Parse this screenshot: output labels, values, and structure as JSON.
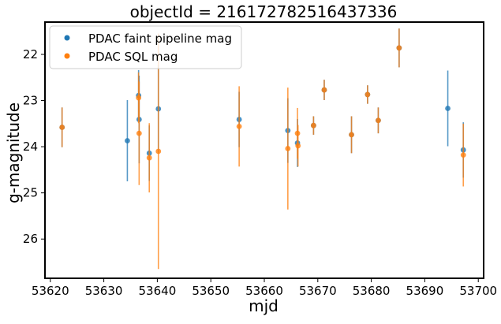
{
  "chart_data": {
    "type": "scatter",
    "title": "objectId = 216172782516437336",
    "xlabel": "mjd",
    "ylabel": "g-magnitude",
    "xlim": [
      53619,
      53701
    ],
    "ylim": [
      26.85,
      21.3
    ],
    "y_inverted": true,
    "x_ticks": [
      53620,
      53630,
      53640,
      53650,
      53660,
      53670,
      53680,
      53690,
      53700
    ],
    "y_ticks": [
      22,
      23,
      24,
      25,
      26
    ],
    "grid": false,
    "legend_position": "top-left",
    "series": [
      {
        "name": "PDAC faint pipeline mag",
        "color": "#1f77b4",
        "points": [
          {
            "x": 53622.2,
            "y": 23.58,
            "err": 0.43
          },
          {
            "x": 53634.4,
            "y": 23.87,
            "err": 0.88
          },
          {
            "x": 53636.5,
            "y": 22.89,
            "err": 0.55
          },
          {
            "x": 53636.6,
            "y": 23.41,
            "err": 0.95
          },
          {
            "x": 53638.5,
            "y": 24.14,
            "err": 0.6
          },
          {
            "x": 53640.2,
            "y": 23.18,
            "err": 0.95
          },
          {
            "x": 53655.3,
            "y": 23.41,
            "err": 0.6
          },
          {
            "x": 53664.4,
            "y": 23.65,
            "err": 0.7
          },
          {
            "x": 53666.2,
            "y": 23.92,
            "err": 0.52
          },
          {
            "x": 53669.2,
            "y": 23.54,
            "err": 0.2
          },
          {
            "x": 53671.2,
            "y": 22.77,
            "err": 0.22
          },
          {
            "x": 53676.3,
            "y": 23.74,
            "err": 0.4
          },
          {
            "x": 53679.3,
            "y": 22.87,
            "err": 0.2
          },
          {
            "x": 53681.3,
            "y": 23.43,
            "err": 0.28
          },
          {
            "x": 53685.2,
            "y": 21.86,
            "err": 0.42
          },
          {
            "x": 53694.3,
            "y": 23.17,
            "err": 0.82
          },
          {
            "x": 53697.2,
            "y": 24.07,
            "err": 0.6
          }
        ]
      },
      {
        "name": "PDAC SQL mag",
        "color": "#ff7f0e",
        "points": [
          {
            "x": 53622.2,
            "y": 23.58,
            "err": 0.43
          },
          {
            "x": 53636.5,
            "y": 22.94,
            "err": 0.55
          },
          {
            "x": 53636.6,
            "y": 23.71,
            "err": 1.12
          },
          {
            "x": 53638.5,
            "y": 24.24,
            "err": 0.75
          },
          {
            "x": 53640.2,
            "y": 24.1,
            "err": 2.55
          },
          {
            "x": 53655.3,
            "y": 23.56,
            "err": 0.87
          },
          {
            "x": 53664.4,
            "y": 24.04,
            "err": 1.32
          },
          {
            "x": 53666.2,
            "y": 23.71,
            "err": 0.55
          },
          {
            "x": 53666.3,
            "y": 23.98,
            "err": 0.45
          },
          {
            "x": 53669.2,
            "y": 23.54,
            "err": 0.2
          },
          {
            "x": 53671.2,
            "y": 22.77,
            "err": 0.22
          },
          {
            "x": 53676.3,
            "y": 23.74,
            "err": 0.4
          },
          {
            "x": 53679.3,
            "y": 22.87,
            "err": 0.2
          },
          {
            "x": 53681.3,
            "y": 23.43,
            "err": 0.28
          },
          {
            "x": 53685.2,
            "y": 21.86,
            "err": 0.42
          },
          {
            "x": 53697.2,
            "y": 24.18,
            "err": 0.68
          }
        ]
      }
    ]
  }
}
